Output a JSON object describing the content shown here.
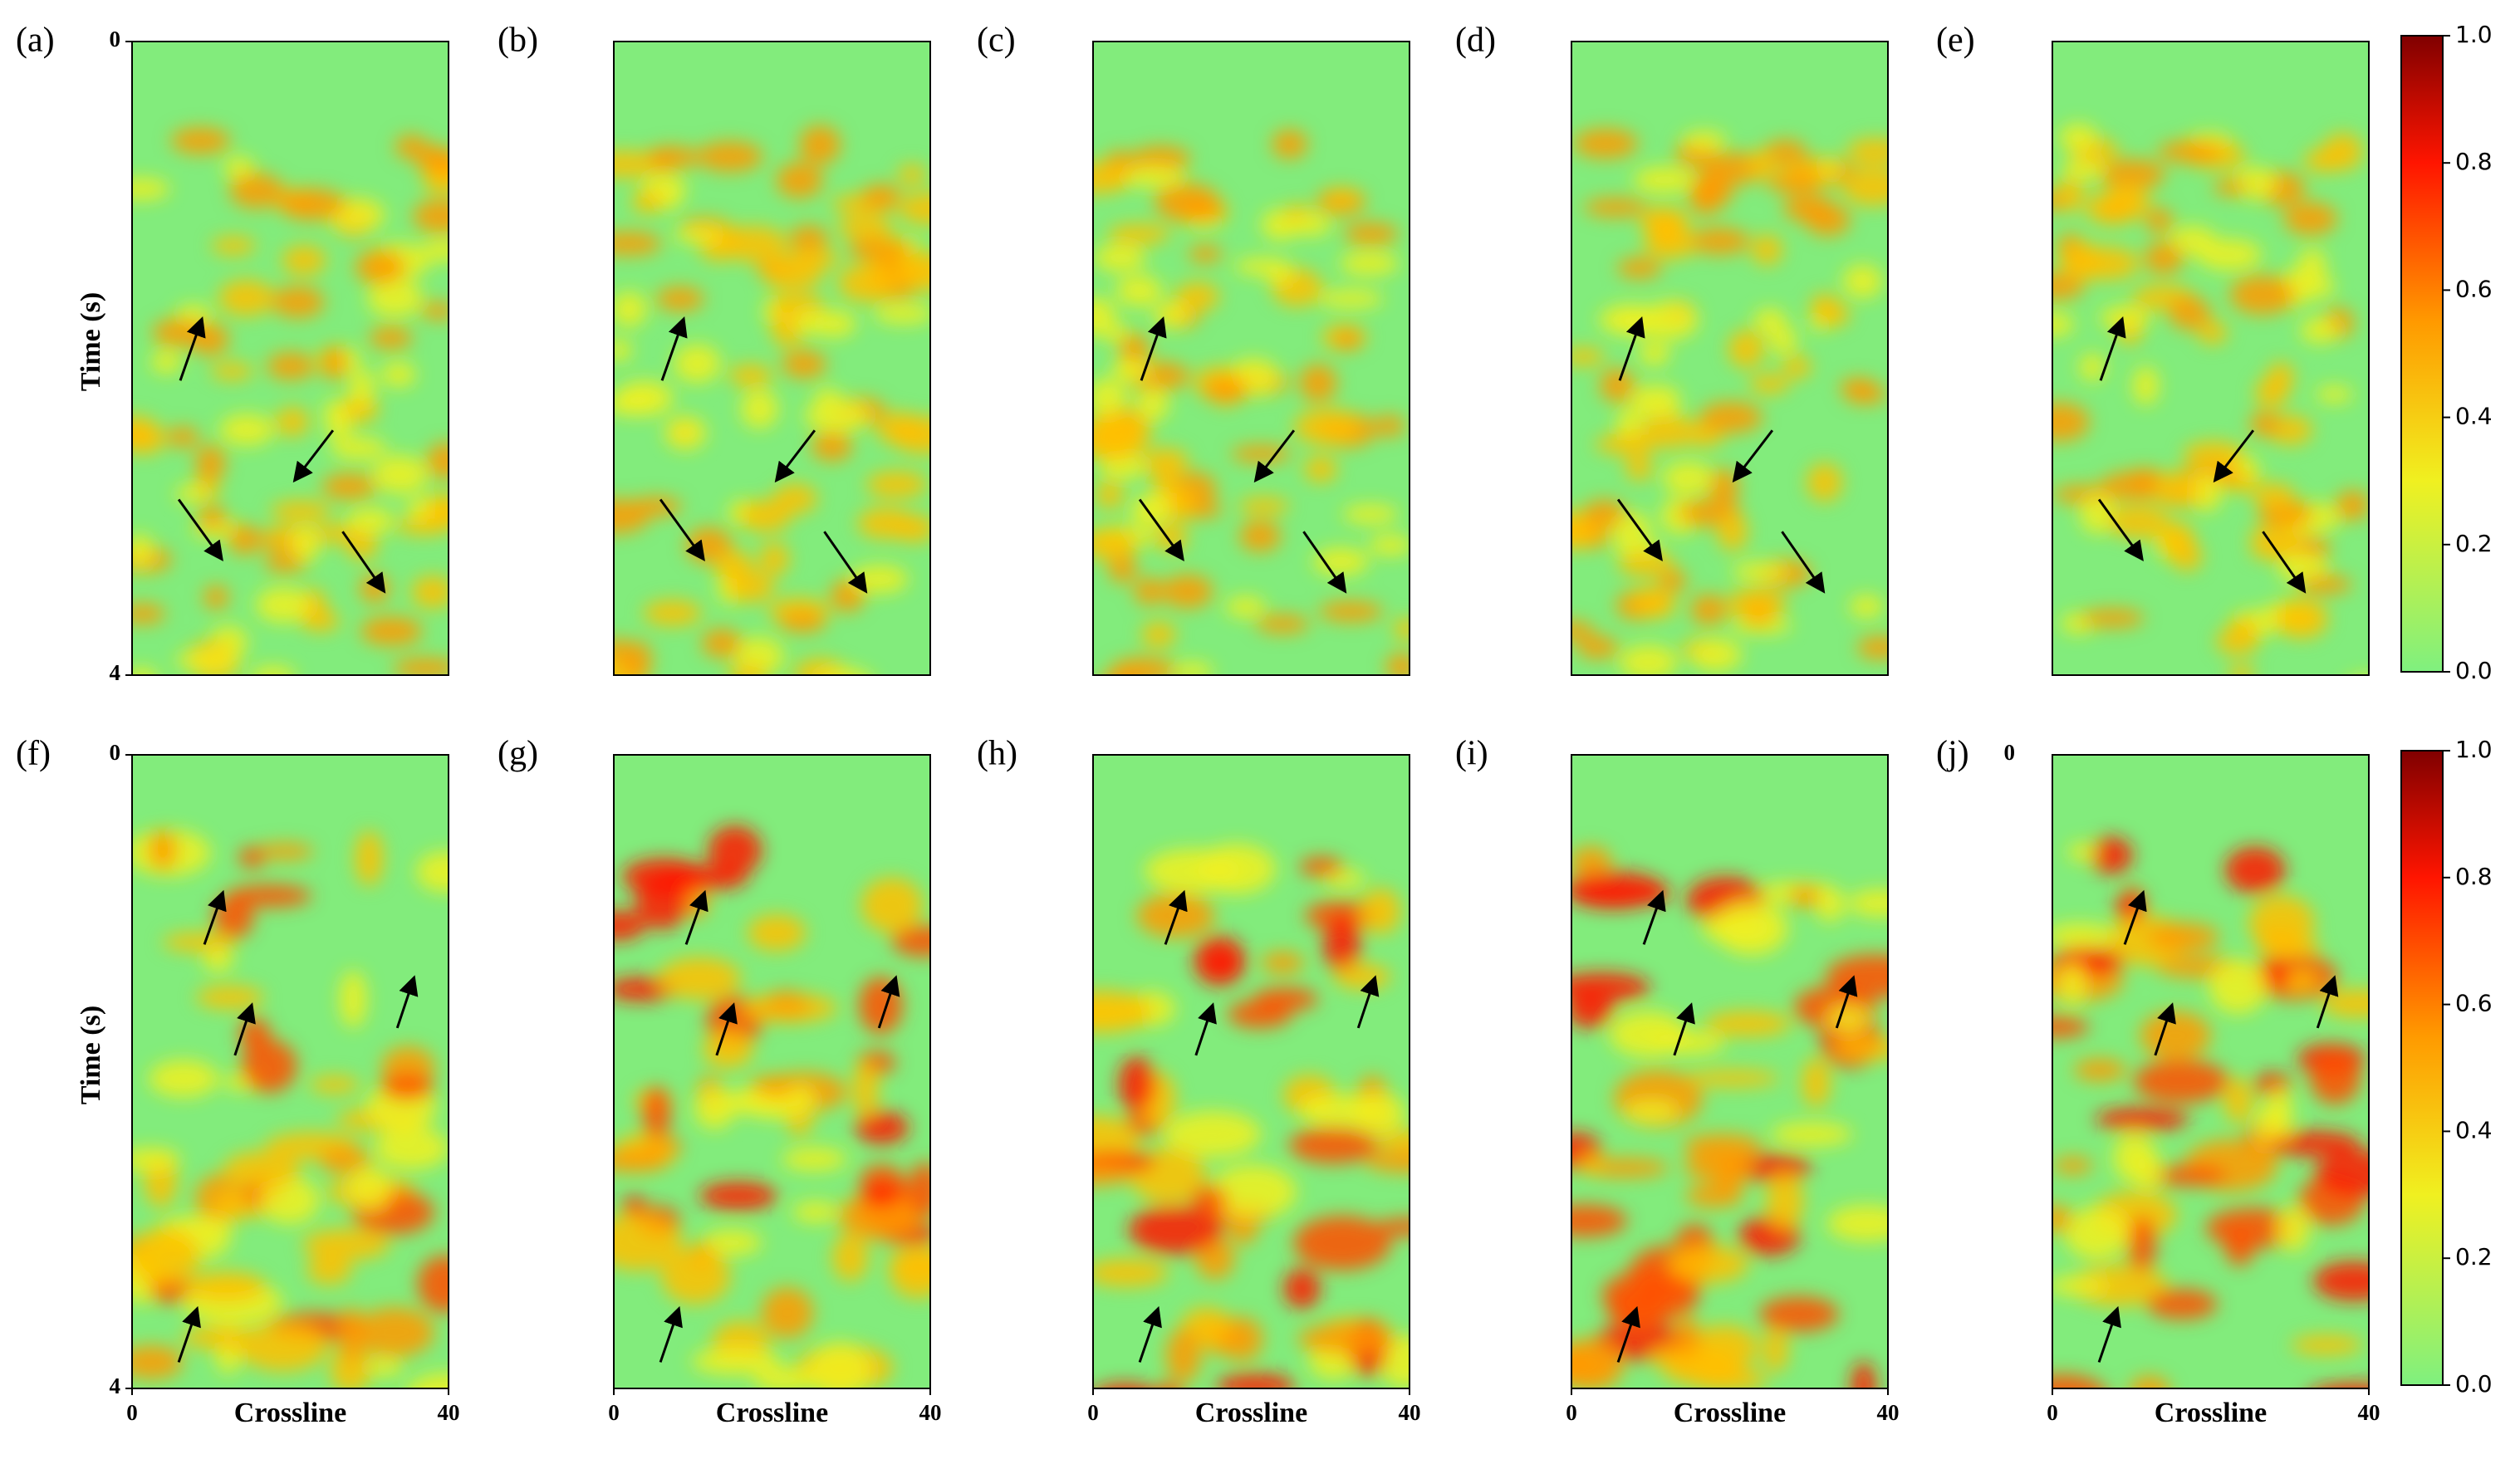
{
  "panels": [
    {
      "label": "(a)"
    },
    {
      "label": "(b)"
    },
    {
      "label": "(c)"
    },
    {
      "label": "(d)"
    },
    {
      "label": "(e)"
    },
    {
      "label": "(f)"
    },
    {
      "label": "(g)"
    },
    {
      "label": "(h)"
    },
    {
      "label": "(i)"
    },
    {
      "label": "(j)"
    }
  ],
  "time_axis": {
    "title": "Time (s)",
    "ticks": [
      0,
      4
    ]
  },
  "crossline_axis": {
    "title": "Crossline",
    "ticks": [
      0,
      40
    ]
  },
  "colorbar": {
    "ticks": [
      {
        "value": 0,
        "label": "0.0"
      },
      {
        "value": 0.2,
        "label": "0.2"
      },
      {
        "value": 0.4,
        "label": "0.4"
      },
      {
        "value": 0.6,
        "label": "0.6"
      },
      {
        "value": 0.8,
        "label": "0.8"
      },
      {
        "value": 1,
        "label": "1.0"
      }
    ]
  }
}
